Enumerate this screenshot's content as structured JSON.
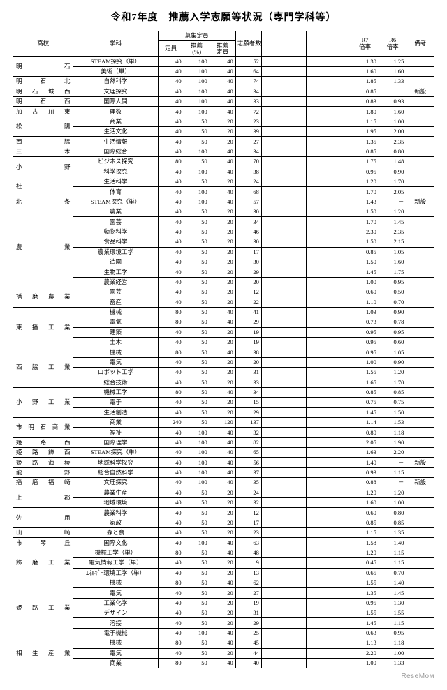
{
  "title": "令和7年度　推薦入学志願等状況（専門学科等）",
  "footer": "ReseMом",
  "headers": {
    "school": "高校",
    "dept": "学科",
    "recruit": "募集定員",
    "capacity": "定員",
    "rec_pct": "推薦\n(%)",
    "rec_cap": "推薦\n定員",
    "applicants": "志願者数",
    "r7": "R7\n倍率",
    "r6": "R6\n倍率",
    "note": "備考"
  },
  "rows": [
    {
      "s": "明石",
      "sr": 2,
      "d": "STEAM探究（単）",
      "c": 40,
      "p": 100,
      "rc": 40,
      "a": 52,
      "r7": "1.30",
      "r6": "1.25",
      "nt": ""
    },
    {
      "d": "美術（単）",
      "c": 40,
      "p": 100,
      "rc": 40,
      "a": 64,
      "r7": "1.60",
      "r6": "1.60",
      "nt": ""
    },
    {
      "s": "明石北",
      "sr": 1,
      "d": "自然科学",
      "c": 40,
      "p": 100,
      "rc": 40,
      "a": 74,
      "r7": "1.85",
      "r6": "1.33",
      "nt": ""
    },
    {
      "s": "明石城西",
      "sr": 1,
      "d": "文理探究",
      "c": 40,
      "p": 100,
      "rc": 40,
      "a": 34,
      "r7": "0.85",
      "r6": "",
      "nt": "新設"
    },
    {
      "s": "明石西",
      "sr": 1,
      "d": "国際人間",
      "c": 40,
      "p": 100,
      "rc": 40,
      "a": 33,
      "r7": "0.83",
      "r6": "0.93",
      "nt": ""
    },
    {
      "s": "加古川東",
      "sr": 1,
      "d": "理数",
      "c": 40,
      "p": 100,
      "rc": 40,
      "a": 72,
      "r7": "1.80",
      "r6": "1.60",
      "nt": ""
    },
    {
      "s": "松陽",
      "sr": 2,
      "d": "商業",
      "c": 40,
      "p": 50,
      "rc": 20,
      "a": 23,
      "r7": "1.15",
      "r6": "1.00",
      "nt": ""
    },
    {
      "d": "生活文化",
      "c": 40,
      "p": 50,
      "rc": 20,
      "a": 39,
      "r7": "1.95",
      "r6": "2.00",
      "nt": ""
    },
    {
      "s": "西脇",
      "sr": 1,
      "d": "生活情報",
      "c": 40,
      "p": 50,
      "rc": 20,
      "a": 27,
      "r7": "1.35",
      "r6": "2.35",
      "nt": ""
    },
    {
      "s": "三木",
      "sr": 1,
      "d": "国際総合",
      "c": 40,
      "p": 100,
      "rc": 40,
      "a": 34,
      "r7": "0.85",
      "r6": "0.80",
      "nt": ""
    },
    {
      "s": "小野",
      "sr": 2,
      "d": "ビジネス探究",
      "c": 80,
      "p": 50,
      "rc": 40,
      "a": 70,
      "r7": "1.75",
      "r6": "1.48",
      "nt": ""
    },
    {
      "d": "科学探究",
      "c": 40,
      "p": 100,
      "rc": 40,
      "a": 38,
      "r7": "0.95",
      "r6": "0.90",
      "nt": ""
    },
    {
      "s": "社",
      "sr": 2,
      "d": "生活科学",
      "c": 40,
      "p": 50,
      "rc": 20,
      "a": 24,
      "r7": "1.20",
      "r6": "1.70",
      "nt": ""
    },
    {
      "d": "体育",
      "c": 40,
      "p": 100,
      "rc": 40,
      "a": 68,
      "r7": "1.70",
      "r6": "2.05",
      "nt": ""
    },
    {
      "s": "北条",
      "sr": 1,
      "d": "STEAM探究（単）",
      "c": 40,
      "p": 100,
      "rc": 40,
      "a": 57,
      "r7": "1.43",
      "r6": "－",
      "nt": "新設"
    },
    {
      "s": "農業",
      "sr": 8,
      "d": "農業",
      "c": 40,
      "p": 50,
      "rc": 20,
      "a": 30,
      "r7": "1.50",
      "r6": "1.20",
      "nt": ""
    },
    {
      "d": "園芸",
      "c": 40,
      "p": 50,
      "rc": 20,
      "a": 34,
      "r7": "1.70",
      "r6": "1.45",
      "nt": ""
    },
    {
      "d": "動物科学",
      "c": 40,
      "p": 50,
      "rc": 20,
      "a": 46,
      "r7": "2.30",
      "r6": "2.35",
      "nt": ""
    },
    {
      "d": "食品科学",
      "c": 40,
      "p": 50,
      "rc": 20,
      "a": 30,
      "r7": "1.50",
      "r6": "2.15",
      "nt": ""
    },
    {
      "d": "農業環境工学",
      "c": 40,
      "p": 50,
      "rc": 20,
      "a": 17,
      "r7": "0.85",
      "r6": "1.05",
      "nt": ""
    },
    {
      "d": "造園",
      "c": 40,
      "p": 50,
      "rc": 20,
      "a": 30,
      "r7": "1.50",
      "r6": "1.60",
      "nt": ""
    },
    {
      "d": "生物工学",
      "c": 40,
      "p": 50,
      "rc": 20,
      "a": 29,
      "r7": "1.45",
      "r6": "1.75",
      "nt": ""
    },
    {
      "d": "農業経営",
      "c": 40,
      "p": 50,
      "rc": 20,
      "a": 20,
      "r7": "1.00",
      "r6": "0.95",
      "nt": ""
    },
    {
      "s": "播磨農業",
      "sr": 2,
      "d": "園芸",
      "c": 40,
      "p": 50,
      "rc": 20,
      "a": 12,
      "r7": "0.60",
      "r6": "0.50",
      "nt": ""
    },
    {
      "d": "畜産",
      "c": 40,
      "p": 50,
      "rc": 20,
      "a": 22,
      "r7": "1.10",
      "r6": "0.70",
      "nt": ""
    },
    {
      "s": "東播工業",
      "sr": 4,
      "d": "機械",
      "c": 80,
      "p": 50,
      "rc": 40,
      "a": 41,
      "r7": "1.03",
      "r6": "0.90",
      "nt": ""
    },
    {
      "d": "電気",
      "c": 80,
      "p": 50,
      "rc": 40,
      "a": 29,
      "r7": "0.73",
      "r6": "0.78",
      "nt": ""
    },
    {
      "d": "建築",
      "c": 40,
      "p": 50,
      "rc": 20,
      "a": 19,
      "r7": "0.95",
      "r6": "0.95",
      "nt": ""
    },
    {
      "d": "土木",
      "c": 40,
      "p": 50,
      "rc": 20,
      "a": 19,
      "r7": "0.95",
      "r6": "0.60",
      "nt": ""
    },
    {
      "s": "西脇工業",
      "sr": 4,
      "d": "機械",
      "c": 80,
      "p": 50,
      "rc": 40,
      "a": 38,
      "r7": "0.95",
      "r6": "1.05",
      "nt": ""
    },
    {
      "d": "電気",
      "c": 40,
      "p": 50,
      "rc": 20,
      "a": 20,
      "r7": "1.00",
      "r6": "0.90",
      "nt": ""
    },
    {
      "d": "ロボット工学",
      "c": 40,
      "p": 50,
      "rc": 20,
      "a": 31,
      "r7": "1.55",
      "r6": "1.20",
      "nt": ""
    },
    {
      "d": "総合技術",
      "c": 40,
      "p": 50,
      "rc": 20,
      "a": 33,
      "r7": "1.65",
      "r6": "1.70",
      "nt": ""
    },
    {
      "s": "小野工業",
      "sr": 3,
      "d": "機械工学",
      "c": 80,
      "p": 50,
      "rc": 40,
      "a": 34,
      "r7": "0.85",
      "r6": "0.85",
      "nt": ""
    },
    {
      "d": "電子",
      "c": 40,
      "p": 50,
      "rc": 20,
      "a": 15,
      "r7": "0.75",
      "r6": "0.75",
      "nt": ""
    },
    {
      "d": "生活創造",
      "c": 40,
      "p": 50,
      "rc": 20,
      "a": 29,
      "r7": "1.45",
      "r6": "1.50",
      "nt": ""
    },
    {
      "s": "市明石商業",
      "sr": 2,
      "d": "商業",
      "c": 240,
      "p": 50,
      "rc": 120,
      "a": 137,
      "r7": "1.14",
      "r6": "1.53",
      "nt": ""
    },
    {
      "d": "福祉",
      "c": 40,
      "p": 100,
      "rc": 40,
      "a": 32,
      "r7": "0.80",
      "r6": "1.18",
      "nt": ""
    },
    {
      "s": "姫路西",
      "sr": 1,
      "d": "国際理学",
      "c": 40,
      "p": 100,
      "rc": 40,
      "a": 82,
      "r7": "2.05",
      "r6": "1.90",
      "nt": ""
    },
    {
      "s": "姫路飾西",
      "sr": 1,
      "d": "STEAM探究（単）",
      "c": 40,
      "p": 100,
      "rc": 40,
      "a": 65,
      "r7": "1.63",
      "r6": "2.20",
      "nt": ""
    },
    {
      "s": "姫路海稜",
      "sr": 1,
      "d": "地域科学探究",
      "c": 40,
      "p": 100,
      "rc": 40,
      "a": 56,
      "r7": "1.40",
      "r6": "－",
      "nt": "新設"
    },
    {
      "s": "龍野",
      "sr": 1,
      "d": "総合自然科学",
      "c": 40,
      "p": 100,
      "rc": 40,
      "a": 37,
      "r7": "0.93",
      "r6": "1.15",
      "nt": ""
    },
    {
      "s": "播磨福崎",
      "sr": 1,
      "d": "文理探究",
      "c": 40,
      "p": 100,
      "rc": 40,
      "a": 35,
      "r7": "0.88",
      "r6": "－",
      "nt": "新設"
    },
    {
      "s": "上郡",
      "sr": 2,
      "d": "農業生産",
      "c": 40,
      "p": 50,
      "rc": 20,
      "a": 24,
      "r7": "1.20",
      "r6": "1.20",
      "nt": ""
    },
    {
      "d": "地域環境",
      "c": 40,
      "p": 50,
      "rc": 20,
      "a": 32,
      "r7": "1.60",
      "r6": "1.00",
      "nt": ""
    },
    {
      "s": "佐用",
      "sr": 2,
      "d": "農業科学",
      "c": 40,
      "p": 50,
      "rc": 20,
      "a": 12,
      "r7": "0.60",
      "r6": "0.80",
      "nt": ""
    },
    {
      "d": "家政",
      "c": 40,
      "p": 50,
      "rc": 20,
      "a": 17,
      "r7": "0.85",
      "r6": "0.85",
      "nt": ""
    },
    {
      "s": "山崎",
      "sr": 1,
      "d": "森と食",
      "c": 40,
      "p": 50,
      "rc": 20,
      "a": 23,
      "r7": "1.15",
      "r6": "1.35",
      "nt": ""
    },
    {
      "s": "市琴丘",
      "sr": 1,
      "d": "国際文化",
      "c": 40,
      "p": 100,
      "rc": 40,
      "a": 63,
      "r7": "1.58",
      "r6": "1.40",
      "nt": ""
    },
    {
      "s": "飾磨工業",
      "sr": 3,
      "d": "機械工学（単）",
      "c": 80,
      "p": 50,
      "rc": 40,
      "a": 48,
      "r7": "1.20",
      "r6": "1.15",
      "nt": ""
    },
    {
      "d": "電気情報工学（単）",
      "c": 40,
      "p": 50,
      "rc": 20,
      "a": 9,
      "r7": "0.45",
      "r6": "1.15",
      "nt": ""
    },
    {
      "d": "ｴﾈﾙｷﾞｰ環境工学（単）",
      "c": 40,
      "p": 50,
      "rc": 20,
      "a": 13,
      "r7": "0.65",
      "r6": "0.70",
      "nt": ""
    },
    {
      "s": "姫路工業",
      "sr": 6,
      "d": "機械",
      "c": 80,
      "p": 50,
      "rc": 40,
      "a": 62,
      "r7": "1.55",
      "r6": "1.40",
      "nt": ""
    },
    {
      "d": "電気",
      "c": 40,
      "p": 50,
      "rc": 20,
      "a": 27,
      "r7": "1.35",
      "r6": "1.45",
      "nt": ""
    },
    {
      "d": "工業化学",
      "c": 40,
      "p": 50,
      "rc": 20,
      "a": 19,
      "r7": "0.95",
      "r6": "1.30",
      "nt": ""
    },
    {
      "d": "デザイン",
      "c": 40,
      "p": 50,
      "rc": 20,
      "a": 31,
      "r7": "1.55",
      "r6": "1.55",
      "nt": ""
    },
    {
      "d": "溶接",
      "c": 40,
      "p": 50,
      "rc": 20,
      "a": 29,
      "r7": "1.45",
      "r6": "1.15",
      "nt": ""
    },
    {
      "d": "電子機械",
      "c": 40,
      "p": 100,
      "rc": 40,
      "a": 25,
      "r7": "0.63",
      "r6": "0.95",
      "nt": ""
    },
    {
      "s": "相生産業",
      "sr": 3,
      "d": "機械",
      "c": 80,
      "p": 50,
      "rc": 40,
      "a": 45,
      "r7": "1.13",
      "r6": "1.18",
      "nt": ""
    },
    {
      "d": "電気",
      "c": 40,
      "p": 50,
      "rc": 20,
      "a": 44,
      "r7": "2.20",
      "r6": "1.00",
      "nt": ""
    },
    {
      "d": "商業",
      "c": 80,
      "p": 50,
      "rc": 40,
      "a": 40,
      "r7": "1.00",
      "r6": "1.33",
      "nt": ""
    }
  ]
}
